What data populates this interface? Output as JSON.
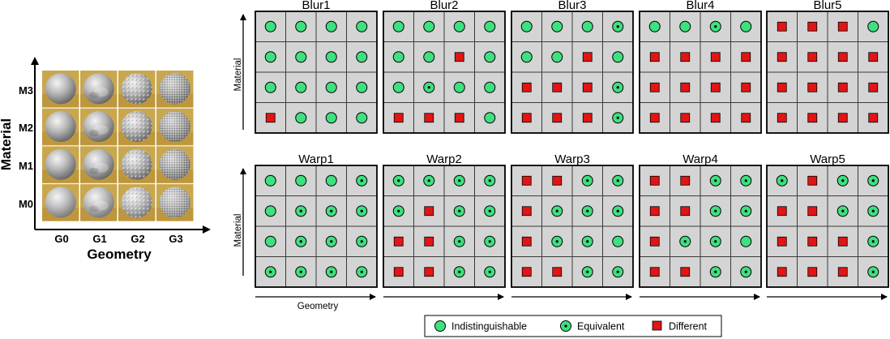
{
  "colors": {
    "indistinguishable": "#3fe07f",
    "equivalent": "#3fe07f",
    "different": "#e01515",
    "cell_bg": "#d4d4d4",
    "cell_line": "#3a3a3a",
    "sphere_bg": "#c9a74d"
  },
  "left_figure": {
    "y_label": "Material",
    "x_label": "Geometry",
    "rows": [
      "M3",
      "M2",
      "M1",
      "M0"
    ],
    "cols": [
      "G0",
      "G1",
      "G2",
      "G3"
    ]
  },
  "matrix_axes": {
    "y_label": "Material",
    "x_label": "Geometry"
  },
  "legend": {
    "items": [
      {
        "label": "Indistinguishable",
        "marker": "circle"
      },
      {
        "label": "Equivalent",
        "marker": "dotted-circle"
      },
      {
        "label": "Different",
        "marker": "square"
      }
    ]
  },
  "panels": [
    {
      "title": "Blur1",
      "grid": [
        [
          "I",
          "I",
          "I",
          "I"
        ],
        [
          "I",
          "I",
          "I",
          "I"
        ],
        [
          "I",
          "I",
          "I",
          "I"
        ],
        [
          "D",
          "I",
          "I",
          "I"
        ]
      ]
    },
    {
      "title": "Blur2",
      "grid": [
        [
          "I",
          "I",
          "I",
          "I"
        ],
        [
          "I",
          "I",
          "D",
          "I"
        ],
        [
          "I",
          "E",
          "I",
          "I"
        ],
        [
          "D",
          "D",
          "D",
          "I"
        ]
      ]
    },
    {
      "title": "Blur3",
      "grid": [
        [
          "I",
          "I",
          "I",
          "E"
        ],
        [
          "I",
          "I",
          "D",
          "I"
        ],
        [
          "D",
          "D",
          "D",
          "E"
        ],
        [
          "D",
          "D",
          "D",
          "E"
        ]
      ]
    },
    {
      "title": "Blur4",
      "grid": [
        [
          "I",
          "I",
          "E",
          "I"
        ],
        [
          "D",
          "D",
          "D",
          "D"
        ],
        [
          "D",
          "D",
          "D",
          "D"
        ],
        [
          "D",
          "D",
          "D",
          "D"
        ]
      ]
    },
    {
      "title": "Blur5",
      "grid": [
        [
          "D",
          "D",
          "D",
          "I"
        ],
        [
          "D",
          "D",
          "D",
          "D"
        ],
        [
          "D",
          "D",
          "D",
          "D"
        ],
        [
          "D",
          "D",
          "D",
          "D"
        ]
      ]
    },
    {
      "title": "Warp1",
      "grid": [
        [
          "I",
          "I",
          "I",
          "E"
        ],
        [
          "I",
          "E",
          "E",
          "E"
        ],
        [
          "I",
          "E",
          "E",
          "E"
        ],
        [
          "E",
          "E",
          "E",
          "E"
        ]
      ]
    },
    {
      "title": "Warp2",
      "grid": [
        [
          "E",
          "E",
          "E",
          "E"
        ],
        [
          "E",
          "D",
          "E",
          "E"
        ],
        [
          "D",
          "D",
          "E",
          "E"
        ],
        [
          "D",
          "D",
          "E",
          "E"
        ]
      ]
    },
    {
      "title": "Warp3",
      "grid": [
        [
          "D",
          "D",
          "E",
          "E"
        ],
        [
          "D",
          "E",
          "E",
          "E"
        ],
        [
          "D",
          "E",
          "E",
          "I"
        ],
        [
          "D",
          "D",
          "E",
          "E"
        ]
      ]
    },
    {
      "title": "Warp4",
      "grid": [
        [
          "D",
          "D",
          "E",
          "E"
        ],
        [
          "D",
          "D",
          "E",
          "E"
        ],
        [
          "D",
          "E",
          "E",
          "I"
        ],
        [
          "D",
          "D",
          "E",
          "E"
        ]
      ]
    },
    {
      "title": "Warp5",
      "grid": [
        [
          "E",
          "D",
          "E",
          "E"
        ],
        [
          "D",
          "D",
          "E",
          "E"
        ],
        [
          "D",
          "D",
          "D",
          "E"
        ],
        [
          "D",
          "D",
          "D",
          "E"
        ]
      ]
    }
  ]
}
